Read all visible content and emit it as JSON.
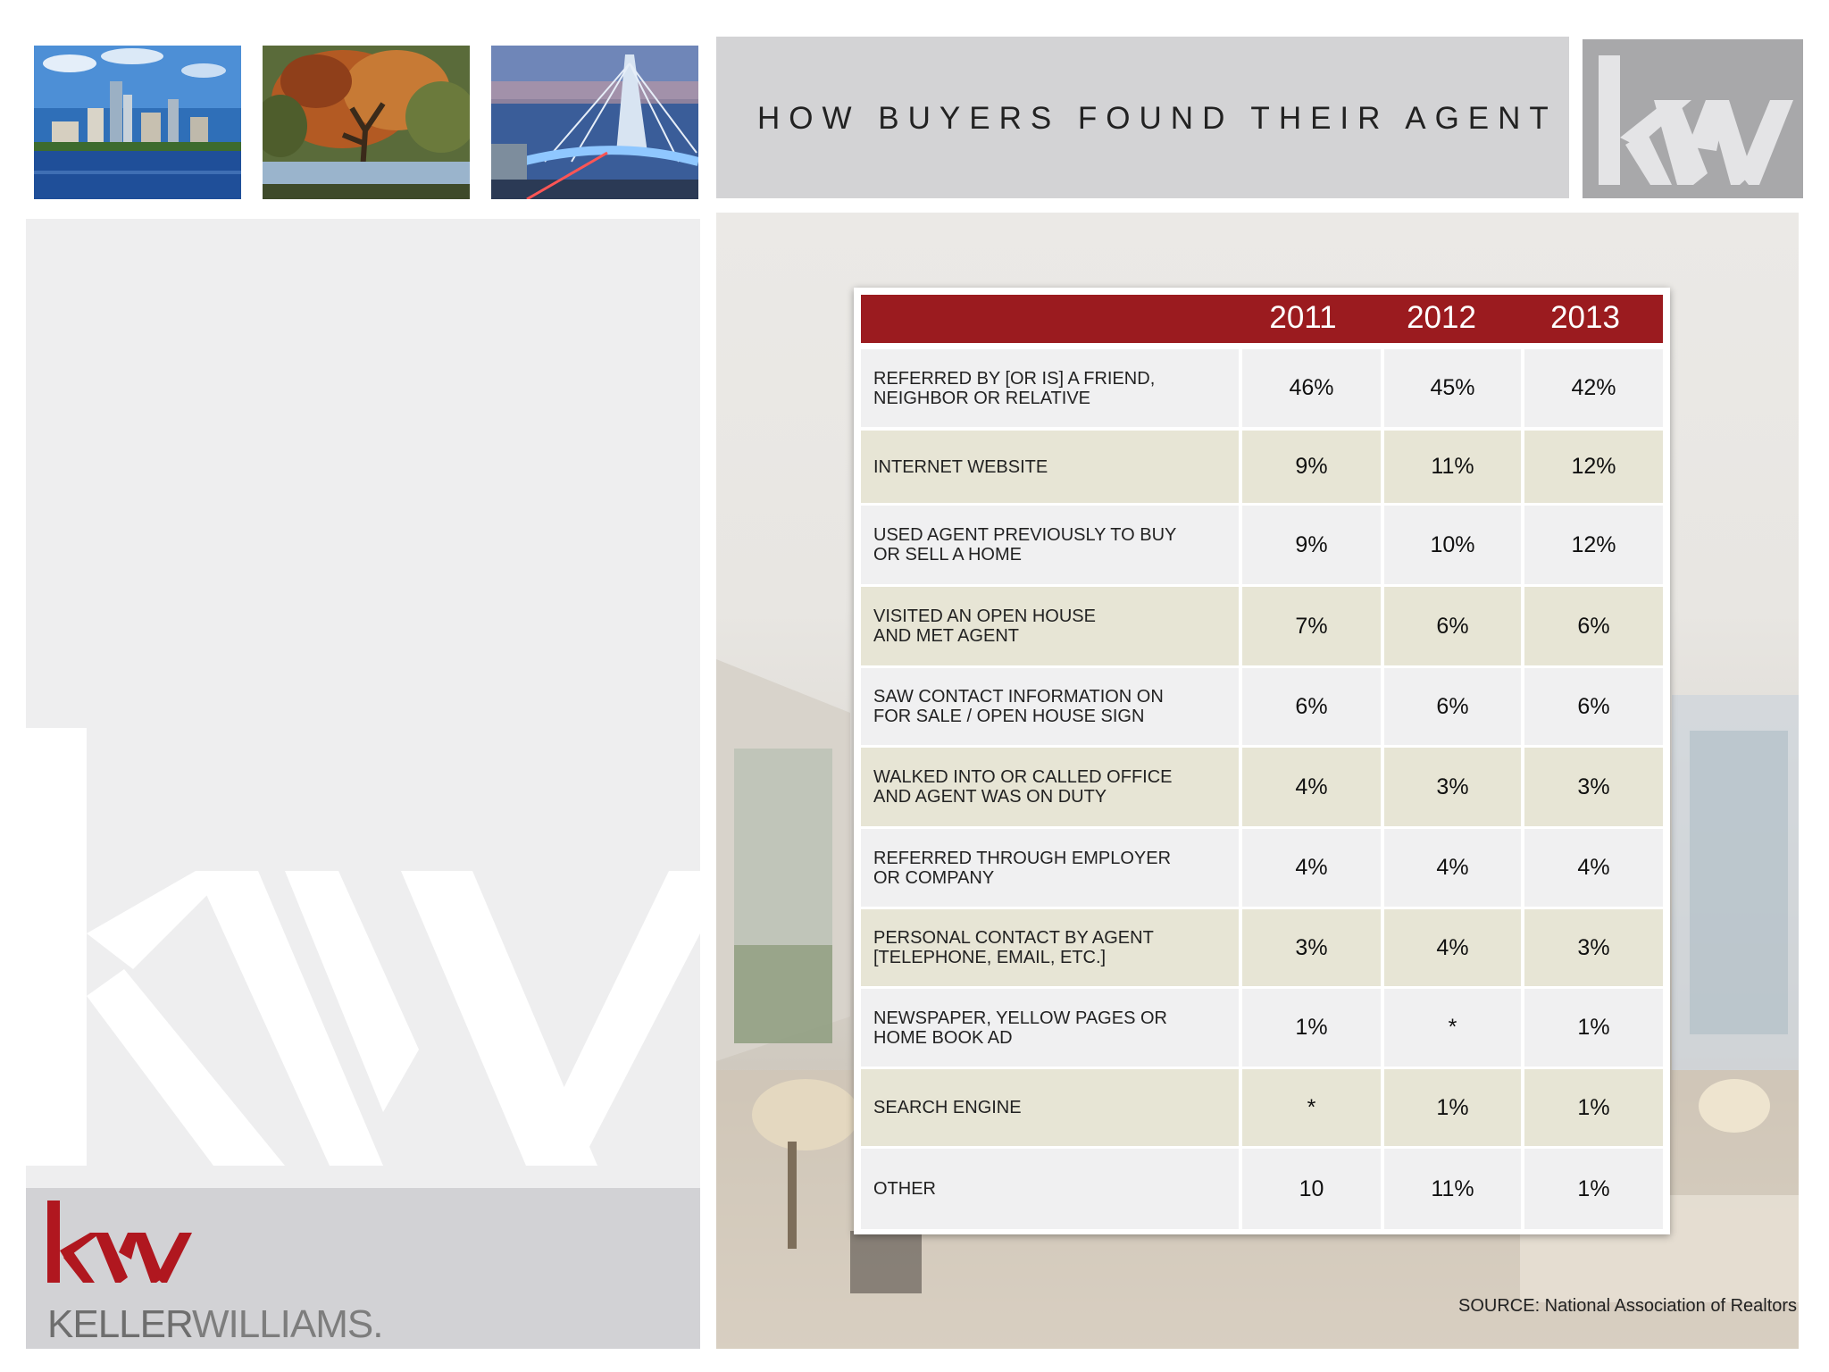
{
  "header": {
    "title": "HOW BUYERS FOUND THEIR AGENT"
  },
  "logo": {
    "mark": "kw"
  },
  "brand": {
    "name_part1": "KELLER",
    "name_part2": "WILLIAMS."
  },
  "table": {
    "years": [
      "2011",
      "2012",
      "2013"
    ],
    "rows": [
      {
        "label": "REFERRED BY [OR IS] A FRIEND,\nNEIGHBOR OR RELATIVE",
        "v2011": "46%",
        "v2012": "45%",
        "v2013": "42%"
      },
      {
        "label": "INTERNET WEBSITE",
        "v2011": "9%",
        "v2012": "11%",
        "v2013": "12%"
      },
      {
        "label": "USED AGENT PREVIOUSLY TO BUY\nOR SELL A HOME",
        "v2011": "9%",
        "v2012": "10%",
        "v2013": "12%"
      },
      {
        "label": "VISITED AN OPEN HOUSE\nAND MET AGENT",
        "v2011": "7%",
        "v2012": "6%",
        "v2013": "6%"
      },
      {
        "label": "SAW CONTACT INFORMATION ON\nFOR SALE / OPEN HOUSE SIGN",
        "v2011": "6%",
        "v2012": "6%",
        "v2013": "6%"
      },
      {
        "label": "WALKED INTO OR CALLED OFFICE\nAND AGENT WAS ON DUTY",
        "v2011": "4%",
        "v2012": "3%",
        "v2013": "3%"
      },
      {
        "label": "REFERRED THROUGH EMPLOYER\nOR COMPANY",
        "v2011": "4%",
        "v2012": "4%",
        "v2013": "4%"
      },
      {
        "label": "PERSONAL CONTACT BY AGENT\n[TELEPHONE, EMAIL, ETC.]",
        "v2011": "3%",
        "v2012": "4%",
        "v2013": "3%"
      },
      {
        "label": "NEWSPAPER, YELLOW PAGES OR\nHOME BOOK AD",
        "v2011": "1%",
        "v2012": "*",
        "v2013": "1%"
      },
      {
        "label": "SEARCH ENGINE",
        "v2011": "*",
        "v2012": "1%",
        "v2013": "1%"
      },
      {
        "label": "OTHER",
        "v2011": "10",
        "v2012": "11%",
        "v2013": "1%"
      }
    ]
  },
  "footer": {
    "source": "SOURCE: National Association of Realtors"
  },
  "colors": {
    "header_red": "#9b1b1f",
    "brand_red": "#b0171f",
    "band_beige": "#e7e5d5",
    "band_grey": "#f0f0f1"
  }
}
